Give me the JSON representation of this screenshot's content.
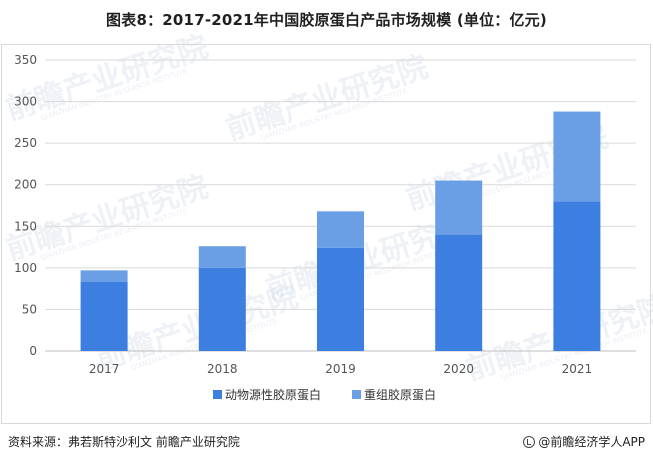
{
  "title": "图表8：2017-2021年中国胶原蛋白产品市场规模 (单位：亿元)",
  "footer": {
    "source": "资料来源：弗若斯特沙利文 前瞻产业研究院",
    "brand": "@前瞻经济学人APP"
  },
  "watermark": {
    "text": "前瞻产业研究院",
    "sub": "QIANZHAN INDUSTRY RESEARCH INSTITUTE"
  },
  "colors": {
    "series_0": "#3d7fe0",
    "series_1": "#6a9fe6",
    "grid": "#d9d9d9",
    "axis": "#bfbfbf"
  },
  "chart_data": {
    "type": "bar",
    "stacked": true,
    "title": "图表8：2017-2021年中国胶原蛋白产品市场规模 (单位：亿元)",
    "categories": [
      "2017",
      "2018",
      "2019",
      "2020",
      "2021"
    ],
    "series": [
      {
        "name": "动物源性胶原蛋白",
        "values": [
          83,
          100,
          124,
          140,
          180
        ]
      },
      {
        "name": "重组胶原蛋白",
        "values": [
          14,
          26,
          44,
          65,
          108
        ]
      }
    ],
    "ylim": [
      0,
      350
    ],
    "yticks": [
      0,
      50,
      100,
      150,
      200,
      250,
      300,
      350
    ],
    "grid": true,
    "legend": "bottom"
  }
}
